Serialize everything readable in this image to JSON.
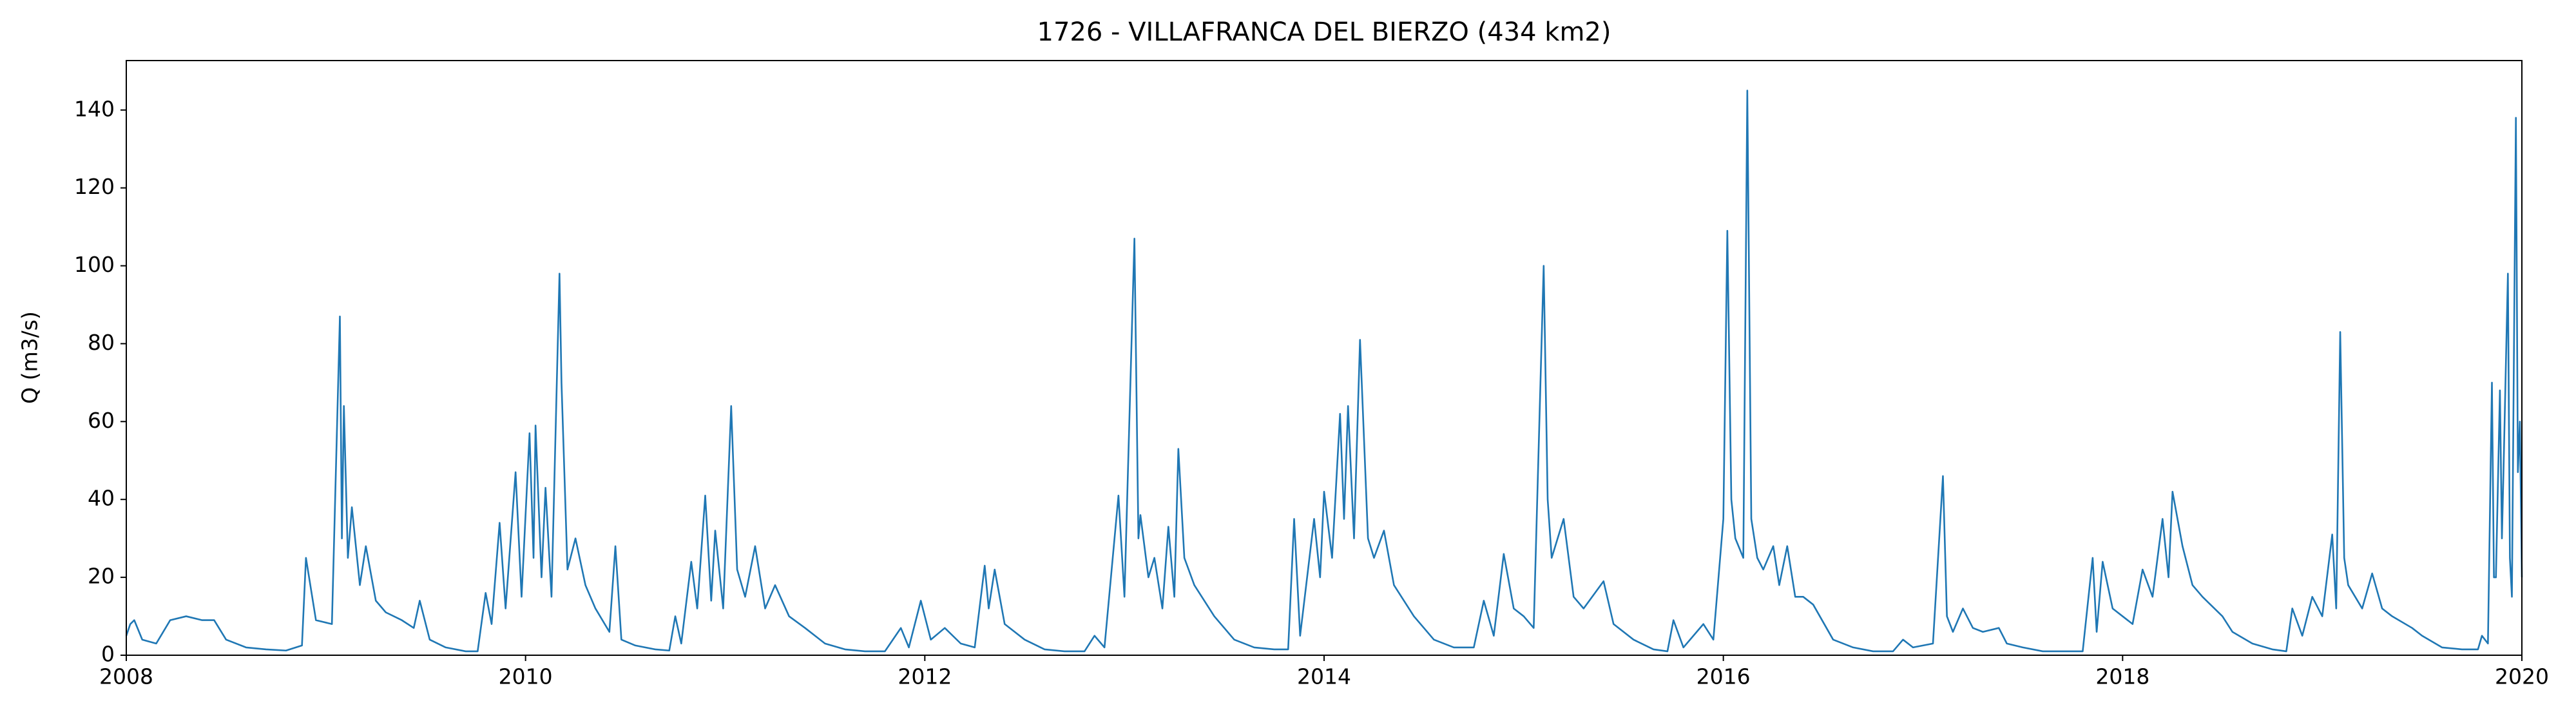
{
  "chart_data": {
    "type": "line",
    "title": "1726 - VILLAFRANCA DEL BIERZO (434 km2)",
    "y_label": "Q (m3/s)",
    "xlim": [
      2008,
      2020
    ],
    "xticks": [
      2008,
      2010,
      2012,
      2014,
      2016,
      2018,
      2020
    ],
    "ylim": [
      0,
      152.7
    ],
    "yticks": [
      0,
      20,
      40,
      60,
      80,
      100,
      120,
      140
    ],
    "grid": false,
    "series": [
      {
        "color": "#1f77b4",
        "x": [
          2008.0,
          2008.02,
          2008.04,
          2008.08,
          2008.15,
          2008.22,
          2008.3,
          2008.38,
          2008.44,
          2008.5,
          2008.6,
          2008.7,
          2008.8,
          2008.88,
          2008.9,
          2008.95,
          2009.03,
          2009.07,
          2009.08,
          2009.09,
          2009.11,
          2009.13,
          2009.17,
          2009.2,
          2009.25,
          2009.3,
          2009.38,
          2009.44,
          2009.47,
          2009.52,
          2009.6,
          2009.7,
          2009.76,
          2009.8,
          2009.83,
          2009.87,
          2009.9,
          2009.95,
          2009.98,
          2010.02,
          2010.04,
          2010.05,
          2010.08,
          2010.1,
          2010.13,
          2010.17,
          2010.18,
          2010.21,
          2010.25,
          2010.3,
          2010.35,
          2010.42,
          2010.45,
          2010.48,
          2010.55,
          2010.65,
          2010.72,
          2010.75,
          2010.78,
          2010.83,
          2010.86,
          2010.9,
          2010.93,
          2010.95,
          2010.99,
          2011.03,
          2011.06,
          2011.1,
          2011.15,
          2011.2,
          2011.25,
          2011.32,
          2011.4,
          2011.5,
          2011.6,
          2011.7,
          2011.8,
          2011.88,
          2011.92,
          2011.98,
          2012.03,
          2012.1,
          2012.18,
          2012.25,
          2012.3,
          2012.32,
          2012.35,
          2012.4,
          2012.5,
          2012.6,
          2012.7,
          2012.8,
          2012.85,
          2012.9,
          2012.97,
          2013.0,
          2013.05,
          2013.07,
          2013.08,
          2013.12,
          2013.15,
          2013.19,
          2013.22,
          2013.25,
          2013.27,
          2013.3,
          2013.35,
          2013.45,
          2013.55,
          2013.65,
          2013.75,
          2013.82,
          2013.85,
          2013.88,
          2013.95,
          2013.98,
          2014.0,
          2014.04,
          2014.08,
          2014.1,
          2014.12,
          2014.15,
          2014.18,
          2014.22,
          2014.25,
          2014.3,
          2014.35,
          2014.45,
          2014.55,
          2014.65,
          2014.75,
          2014.8,
          2014.85,
          2014.9,
          2014.95,
          2015.0,
          2015.05,
          2015.1,
          2015.12,
          2015.14,
          2015.2,
          2015.25,
          2015.3,
          2015.4,
          2015.45,
          2015.55,
          2015.65,
          2015.72,
          2015.75,
          2015.8,
          2015.9,
          2015.95,
          2016.0,
          2016.02,
          2016.04,
          2016.06,
          2016.1,
          2016.12,
          2016.14,
          2016.17,
          2016.2,
          2016.25,
          2016.28,
          2016.32,
          2016.36,
          2016.4,
          2016.45,
          2016.55,
          2016.65,
          2016.75,
          2016.85,
          2016.9,
          2016.95,
          2017.05,
          2017.1,
          2017.12,
          2017.15,
          2017.2,
          2017.25,
          2017.3,
          2017.38,
          2017.42,
          2017.5,
          2017.6,
          2017.7,
          2017.8,
          2017.85,
          2017.87,
          2017.9,
          2017.95,
          2018.0,
          2018.05,
          2018.1,
          2018.15,
          2018.2,
          2018.23,
          2018.25,
          2018.3,
          2018.35,
          2018.4,
          2018.5,
          2018.55,
          2018.65,
          2018.75,
          2018.82,
          2018.85,
          2018.9,
          2018.95,
          2019.0,
          2019.05,
          2019.07,
          2019.09,
          2019.11,
          2019.13,
          2019.2,
          2019.25,
          2019.3,
          2019.35,
          2019.45,
          2019.5,
          2019.6,
          2019.7,
          2019.78,
          2019.8,
          2019.83,
          2019.85,
          2019.86,
          2019.87,
          2019.89,
          2019.9,
          2019.91,
          2019.93,
          2019.94,
          2019.95,
          2019.97,
          2019.98,
          2019.99,
          2020.0
        ],
        "values": [
          5,
          8,
          9,
          4,
          3,
          9,
          10,
          9,
          9,
          4,
          2,
          1.5,
          1.2,
          2.5,
          25,
          9,
          8,
          87,
          30,
          64,
          25,
          38,
          18,
          28,
          14,
          11,
          9,
          7,
          14,
          4,
          2,
          1,
          1,
          16,
          8,
          34,
          12,
          47,
          15,
          57,
          25,
          59,
          20,
          43,
          15,
          98,
          70,
          22,
          30,
          18,
          12,
          6,
          28,
          4,
          2.5,
          1.5,
          1.2,
          10,
          3,
          24,
          12,
          41,
          14,
          32,
          12,
          64,
          22,
          15,
          28,
          12,
          18,
          10,
          7,
          3,
          1.5,
          1,
          1,
          7,
          2,
          14,
          4,
          7,
          3,
          2,
          23,
          12,
          22,
          8,
          4,
          1.5,
          1,
          1,
          5,
          2,
          41,
          15,
          107,
          30,
          36,
          20,
          25,
          12,
          33,
          15,
          53,
          25,
          18,
          10,
          4,
          2,
          1.5,
          1.5,
          35,
          5,
          35,
          20,
          42,
          25,
          62,
          35,
          64,
          30,
          81,
          30,
          25,
          32,
          18,
          10,
          4,
          2,
          2,
          14,
          5,
          26,
          12,
          10,
          7,
          100,
          40,
          25,
          35,
          15,
          12,
          19,
          8,
          4,
          1.5,
          1,
          9,
          2,
          8,
          4,
          35,
          109,
          40,
          30,
          25,
          145,
          35,
          25,
          22,
          28,
          18,
          28,
          15,
          15,
          13,
          4,
          2,
          1,
          1,
          4,
          2,
          3,
          46,
          10,
          6,
          12,
          7,
          6,
          7,
          3,
          2,
          1,
          1,
          1,
          25,
          6,
          24,
          12,
          10,
          8,
          22,
          15,
          35,
          20,
          42,
          28,
          18,
          15,
          10,
          6,
          3,
          1.5,
          1,
          12,
          5,
          15,
          10,
          31,
          12,
          83,
          25,
          18,
          12,
          21,
          12,
          10,
          7,
          5,
          2,
          1.5,
          1.5,
          5,
          3,
          70,
          20,
          20,
          68,
          30,
          52,
          98,
          25,
          15,
          138,
          47,
          60,
          20
        ]
      }
    ]
  }
}
